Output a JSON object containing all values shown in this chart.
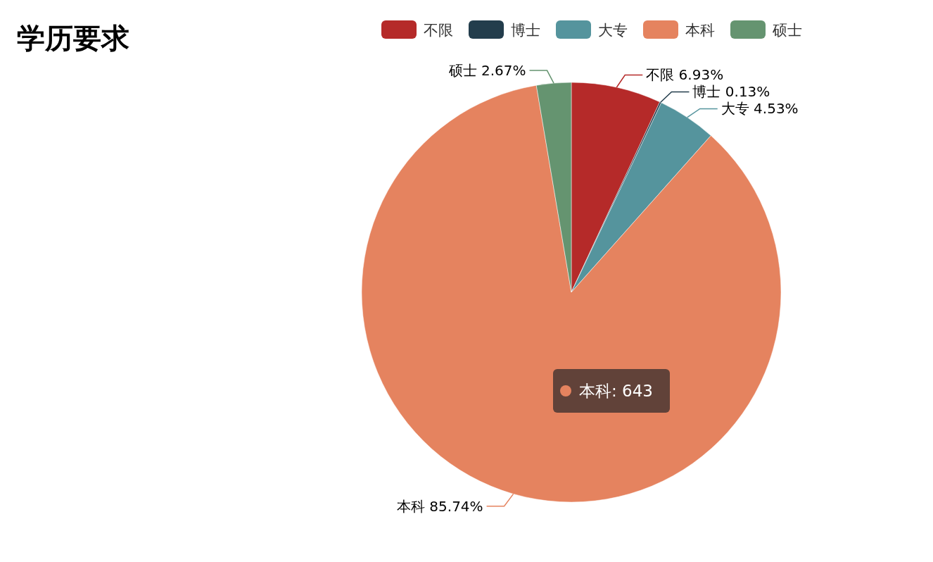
{
  "chart_data": {
    "type": "pie",
    "title": "学历要求",
    "categories": [
      "不限",
      "博士",
      "大专",
      "本科",
      "硕士"
    ],
    "values": [
      6.93,
      0.13,
      4.53,
      85.74,
      2.67
    ],
    "colors": [
      "#b52a29",
      "#233d4c",
      "#55949d",
      "#e5835f",
      "#659470"
    ],
    "value_labels": [
      "6.93%",
      "0.13%",
      "4.53%",
      "85.74%",
      "2.67%"
    ],
    "legend": "top",
    "annotations": [
      {
        "text": "本科: 643",
        "x": "本科"
      }
    ]
  }
}
